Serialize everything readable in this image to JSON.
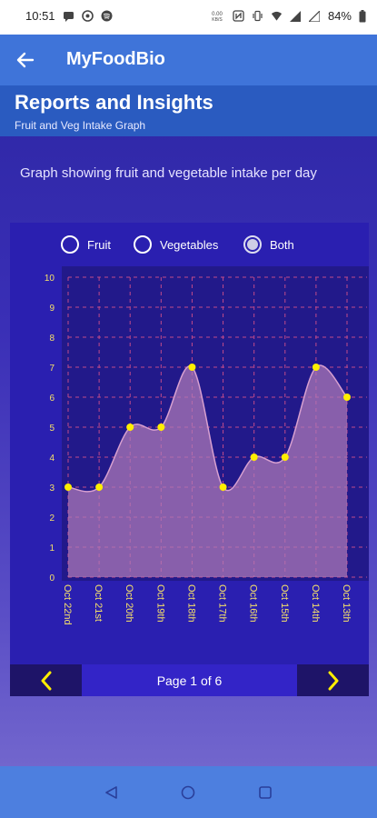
{
  "status_bar": {
    "time": "10:51",
    "battery": "84%",
    "left_icons": [
      "message-icon",
      "circle-app-icon",
      "spotify-icon"
    ],
    "right_icons": [
      "data-speed-icon",
      "nfc-icon",
      "vibrate-icon",
      "wifi-icon",
      "signal-icon",
      "signal-icon-2",
      "battery-icon"
    ],
    "data_speed": "0.00\nKB/S"
  },
  "app_bar": {
    "title": "MyFoodBio",
    "back_icon": "arrow-left-icon"
  },
  "header": {
    "title": "Reports and Insights",
    "subtitle": "Fruit and Veg Intake Graph"
  },
  "description": "Graph showing fruit and vegetable intake per day",
  "filter": {
    "options": [
      {
        "label": "Fruit",
        "checked": false
      },
      {
        "label": "Vegetables",
        "checked": false
      },
      {
        "label": "Both",
        "checked": true
      }
    ]
  },
  "chart_data": {
    "type": "area",
    "categories": [
      "Oct 22nd",
      "Oct 21st",
      "Oct 20th",
      "Oct 19th",
      "Oct 18th",
      "Oct 17th",
      "Oct 16th",
      "Oct 15th",
      "Oct 14th",
      "Oct 13th"
    ],
    "values": [
      3,
      3,
      5,
      5,
      7,
      3,
      4,
      4,
      7,
      6
    ],
    "ylim": [
      0,
      10
    ],
    "yticks": [
      0,
      1,
      2,
      3,
      4,
      5,
      6,
      7,
      8,
      9,
      10
    ],
    "grid": true,
    "colors": {
      "background": "#22198a",
      "grid": "#c04a8a",
      "fill": "#b07ab8",
      "line": "#d8a0d0",
      "point": "#ffee00",
      "tick": "#f5e06a"
    }
  },
  "pager": {
    "label": "Page 1 of 6",
    "prev_icon": "chevron-left-icon",
    "next_icon": "chevron-right-icon",
    "arrow_color": "#ffee00"
  },
  "nav_bar": {
    "icons": [
      "back-triangle-icon",
      "home-circle-icon",
      "recents-square-icon"
    ]
  }
}
